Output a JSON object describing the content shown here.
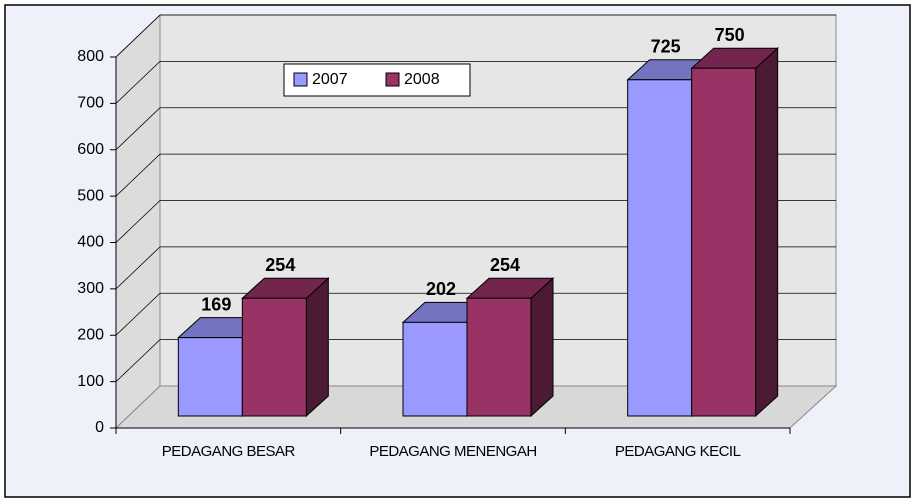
{
  "chart_data": {
    "type": "bar3d",
    "categories": [
      "PEDAGANG BESAR",
      "PEDAGANG MENENGAH",
      "PEDAGANG KECIL"
    ],
    "series": [
      {
        "name": "2007",
        "color": "#9999ff",
        "values": [
          169,
          202,
          725
        ]
      },
      {
        "name": "2008",
        "color": "#993366",
        "values": [
          254,
          254,
          750
        ]
      }
    ],
    "ylim": [
      0,
      800
    ],
    "yticks": [
      0,
      100,
      200,
      300,
      400,
      500,
      600,
      700,
      800
    ],
    "grid": true
  }
}
